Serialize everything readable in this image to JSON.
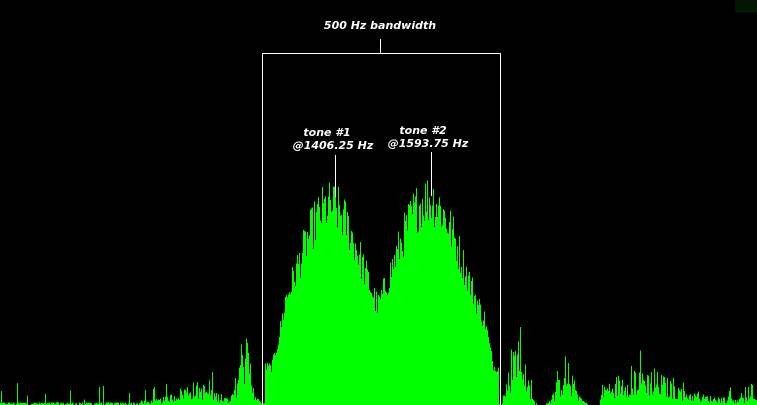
{
  "bandwidth": {
    "label": "500 Hz bandwidth"
  },
  "tones": [
    {
      "name": "tone #1",
      "frequency": "@1406.25 Hz"
    },
    {
      "name": "tone #2",
      "frequency": "@1593.75 Hz"
    }
  ],
  "colors": {
    "background": "#000000",
    "spectrum": "#00ff00",
    "annotation": "#ffffff"
  }
}
